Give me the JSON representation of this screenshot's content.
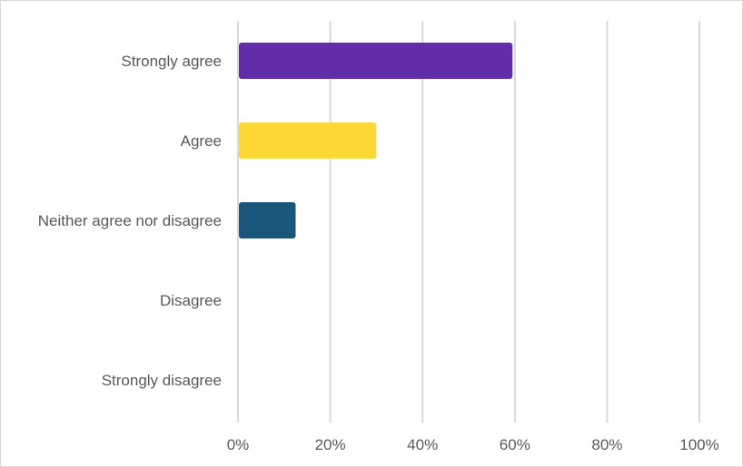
{
  "chart_data": {
    "type": "bar",
    "orientation": "horizontal",
    "categories": [
      "Strongly agree",
      "Agree",
      "Neither agree nor disagree",
      "Disagree",
      "Strongly disagree"
    ],
    "values": [
      59.5,
      30,
      12.5,
      0,
      0
    ],
    "colors": [
      "#622da8",
      "#fdd733",
      "#1a557a",
      "#cccccc",
      "#cccccc"
    ],
    "xlim": [
      0,
      100
    ],
    "x_ticks": [
      "0%",
      "20%",
      "40%",
      "60%",
      "80%",
      "100%"
    ],
    "grid": true,
    "legend": false
  }
}
